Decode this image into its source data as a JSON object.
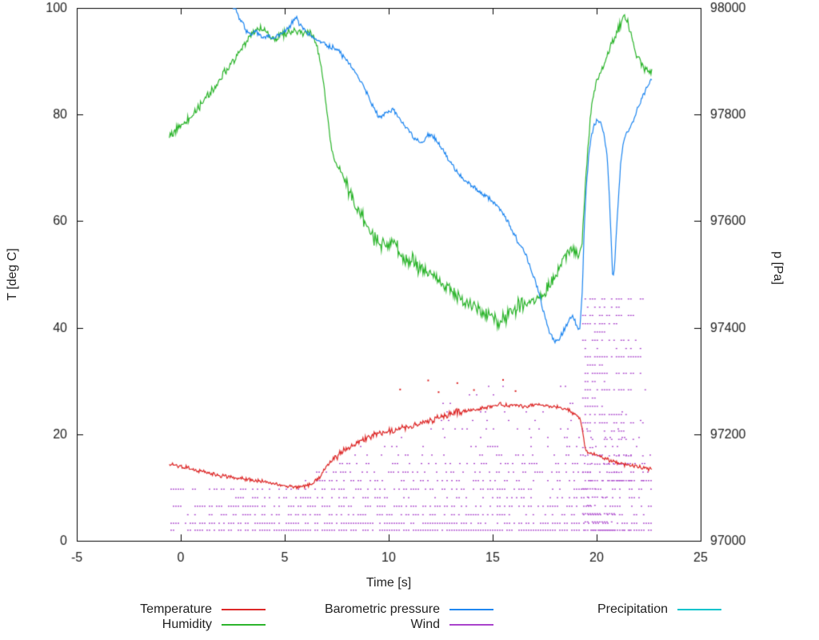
{
  "chart_data": {
    "type": "line",
    "title": "",
    "xlabel": "Time [s]",
    "ylabel_left": "T [deg C]",
    "ylabel_right": "p [Pa]",
    "x_range": [
      -5,
      25
    ],
    "y_left_range": [
      0,
      100
    ],
    "y_right_range": [
      97000,
      98000
    ],
    "x_ticks": [
      -5,
      0,
      5,
      10,
      15,
      20,
      25
    ],
    "y_left_ticks": [
      0,
      20,
      40,
      60,
      80,
      100
    ],
    "y_right_ticks": [
      97000,
      97200,
      97400,
      97600,
      97800,
      98000
    ],
    "grid": false,
    "legend_position": "bottom",
    "background": "#ffffff",
    "axis_color": "#000000",
    "series": [
      {
        "name": "Temperature",
        "color": "#dd2727",
        "axis": "left",
        "style": "noisy-line",
        "noise": 0.45,
        "noise_windows": [
          {
            "t": [
              7.5,
              13.5
            ],
            "amp": 0.35
          }
        ],
        "points": [
          [
            -0.55,
            14.3
          ],
          [
            -0.2,
            14.1
          ],
          [
            0,
            14.0
          ],
          [
            0.5,
            13.5
          ],
          [
            1,
            13.1
          ],
          [
            1.5,
            12.6
          ],
          [
            2,
            12.2
          ],
          [
            2.5,
            11.9
          ],
          [
            3,
            11.6
          ],
          [
            3.5,
            11.3
          ],
          [
            4,
            11.1
          ],
          [
            4.4,
            10.8
          ],
          [
            4.8,
            10.4
          ],
          [
            5.2,
            10.2
          ],
          [
            5.6,
            10.1
          ],
          [
            6,
            10.3
          ],
          [
            6.4,
            10.8
          ],
          [
            6.7,
            12.0
          ],
          [
            7,
            13.8
          ],
          [
            7.3,
            15.2
          ],
          [
            7.6,
            16.2
          ],
          [
            8,
            17.3
          ],
          [
            8.4,
            18.2
          ],
          [
            8.8,
            19.0
          ],
          [
            9.2,
            19.7
          ],
          [
            9.6,
            20.1
          ],
          [
            10,
            20.5
          ],
          [
            10.5,
            20.9
          ],
          [
            11,
            21.4
          ],
          [
            11.5,
            21.9
          ],
          [
            12,
            22.4
          ],
          [
            12.5,
            23.2
          ],
          [
            13,
            23.9
          ],
          [
            13.5,
            24.3
          ],
          [
            14,
            24.6
          ],
          [
            14.5,
            24.9
          ],
          [
            15,
            25.3
          ],
          [
            15.4,
            25.6
          ],
          [
            15.8,
            25.3
          ],
          [
            16.2,
            25.5
          ],
          [
            16.6,
            25.2
          ],
          [
            17,
            25.5
          ],
          [
            17.4,
            25.4
          ],
          [
            17.8,
            25.2
          ],
          [
            18.2,
            25.0
          ],
          [
            18.6,
            24.6
          ],
          [
            19,
            23.6
          ],
          [
            19.2,
            23.2
          ],
          [
            19.3,
            21.0
          ],
          [
            19.45,
            17.2
          ],
          [
            19.6,
            16.6
          ],
          [
            19.9,
            16.2
          ],
          [
            20.3,
            15.6
          ],
          [
            20.7,
            15.0
          ],
          [
            21.1,
            14.6
          ],
          [
            21.5,
            14.2
          ],
          [
            21.9,
            13.9
          ],
          [
            22.3,
            13.6
          ],
          [
            22.65,
            13.4
          ]
        ],
        "outliers": [
          [
            10.55,
            28.4
          ],
          [
            11.9,
            30.1
          ],
          [
            12.4,
            27.9
          ],
          [
            13.3,
            29.6
          ],
          [
            14.1,
            28.3
          ],
          [
            15.5,
            30.2
          ],
          [
            16.1,
            28.1
          ]
        ]
      },
      {
        "name": "Humidity",
        "color": "#2db52d",
        "axis": "left",
        "style": "noisy-line",
        "noise": 0.9,
        "noise_windows": [
          {
            "t": [
              7.8,
              16.5
            ],
            "amp": 1.0
          },
          {
            "t": [
              17.5,
              19.2
            ],
            "amp": 0.7
          }
        ],
        "points": [
          [
            -0.55,
            76.2
          ],
          [
            -0.3,
            77
          ],
          [
            0,
            78
          ],
          [
            0.3,
            79
          ],
          [
            0.6,
            80
          ],
          [
            0.9,
            81.5
          ],
          [
            1.2,
            83
          ],
          [
            1.5,
            84.5
          ],
          [
            1.8,
            86
          ],
          [
            2.1,
            88
          ],
          [
            2.4,
            89.5
          ],
          [
            2.7,
            91
          ],
          [
            3,
            93
          ],
          [
            3.3,
            94.5
          ],
          [
            3.6,
            96
          ],
          [
            3.9,
            96.3
          ],
          [
            4.2,
            95
          ],
          [
            4.5,
            94.3
          ],
          [
            4.8,
            94.8
          ],
          [
            5.1,
            95.3
          ],
          [
            5.4,
            95.8
          ],
          [
            5.7,
            95.2
          ],
          [
            6,
            95.5
          ],
          [
            6.3,
            95.2
          ],
          [
            6.5,
            93.8
          ],
          [
            6.7,
            90
          ],
          [
            6.9,
            85
          ],
          [
            7.1,
            78
          ],
          [
            7.3,
            72.5
          ],
          [
            7.5,
            70.8
          ],
          [
            7.7,
            69.5
          ],
          [
            8,
            66.5
          ],
          [
            8.4,
            63
          ],
          [
            8.8,
            60
          ],
          [
            9.2,
            57.5
          ],
          [
            9.6,
            55.8
          ],
          [
            10,
            55.3
          ],
          [
            10.2,
            56.5
          ],
          [
            10.5,
            54
          ],
          [
            10.8,
            53
          ],
          [
            11.1,
            52.5
          ],
          [
            11.5,
            51
          ],
          [
            12,
            50
          ],
          [
            12.5,
            48.5
          ],
          [
            13,
            47
          ],
          [
            13.5,
            45.4
          ],
          [
            14,
            44
          ],
          [
            14.5,
            42.8
          ],
          [
            15,
            42
          ],
          [
            15.3,
            41.3
          ],
          [
            15.7,
            42.3
          ],
          [
            16.1,
            43.8
          ],
          [
            16.5,
            44.6
          ],
          [
            17,
            45.2
          ],
          [
            17.4,
            46.2
          ],
          [
            17.8,
            48
          ],
          [
            18.1,
            50
          ],
          [
            18.4,
            52.8
          ],
          [
            18.7,
            54.5
          ],
          [
            19,
            54.2
          ],
          [
            19.15,
            53.6
          ],
          [
            19.3,
            56
          ],
          [
            19.4,
            63
          ],
          [
            19.55,
            72
          ],
          [
            19.7,
            80
          ],
          [
            19.85,
            83.5
          ],
          [
            20,
            86
          ],
          [
            20.3,
            89
          ],
          [
            20.6,
            92
          ],
          [
            20.9,
            94.8
          ],
          [
            21.1,
            96.5
          ],
          [
            21.35,
            98.6
          ],
          [
            21.5,
            97.6
          ],
          [
            21.65,
            95
          ],
          [
            21.85,
            92
          ],
          [
            22.05,
            90.3
          ],
          [
            22.3,
            88.8
          ],
          [
            22.65,
            87.8
          ]
        ]
      },
      {
        "name": "Barometric pressure",
        "color": "#1e86f0",
        "axis": "right",
        "style": "noisy-line",
        "noise": 6,
        "points": [
          [
            2.5,
            98010
          ],
          [
            2.65,
            97995
          ],
          [
            2.8,
            97982
          ],
          [
            3,
            97968
          ],
          [
            3.2,
            97955
          ],
          [
            3.4,
            97950
          ],
          [
            3.6,
            97956
          ],
          [
            3.8,
            97950
          ],
          [
            4,
            97944
          ],
          [
            4.2,
            97949
          ],
          [
            4.4,
            97943
          ],
          [
            4.6,
            97948
          ],
          [
            4.8,
            97952
          ],
          [
            5,
            97957
          ],
          [
            5.2,
            97963
          ],
          [
            5.4,
            97977
          ],
          [
            5.55,
            97983
          ],
          [
            5.7,
            97970
          ],
          [
            5.9,
            97960
          ],
          [
            6.1,
            97953
          ],
          [
            6.3,
            97947
          ],
          [
            6.5,
            97941
          ],
          [
            6.7,
            97936
          ],
          [
            7,
            97931
          ],
          [
            7.3,
            97926
          ],
          [
            7.6,
            97918
          ],
          [
            7.9,
            97906
          ],
          [
            8.2,
            97891
          ],
          [
            8.5,
            97872
          ],
          [
            8.8,
            97852
          ],
          [
            9.1,
            97827
          ],
          [
            9.4,
            97803
          ],
          [
            9.6,
            97793
          ],
          [
            9.8,
            97801
          ],
          [
            10,
            97806
          ],
          [
            10.2,
            97811
          ],
          [
            10.4,
            97801
          ],
          [
            10.6,
            97789
          ],
          [
            10.8,
            97777
          ],
          [
            11,
            97769
          ],
          [
            11.2,
            97757
          ],
          [
            11.45,
            97748
          ],
          [
            11.7,
            97752
          ],
          [
            11.95,
            97763
          ],
          [
            12.2,
            97758
          ],
          [
            12.45,
            97743
          ],
          [
            12.7,
            97728
          ],
          [
            13,
            97709
          ],
          [
            13.3,
            97692
          ],
          [
            13.6,
            97678
          ],
          [
            13.9,
            97670
          ],
          [
            14.2,
            97662
          ],
          [
            14.5,
            97650
          ],
          [
            14.8,
            97643
          ],
          [
            15.1,
            97635
          ],
          [
            15.4,
            97618
          ],
          [
            15.7,
            97603
          ],
          [
            16,
            97578
          ],
          [
            16.3,
            97557
          ],
          [
            16.6,
            97536
          ],
          [
            16.9,
            97505
          ],
          [
            17.1,
            97480
          ],
          [
            17.35,
            97445
          ],
          [
            17.6,
            97408
          ],
          [
            17.8,
            97385
          ],
          [
            18,
            97372
          ],
          [
            18.15,
            97377
          ],
          [
            18.3,
            97385
          ],
          [
            18.5,
            97400
          ],
          [
            18.7,
            97417
          ],
          [
            18.85,
            97422
          ],
          [
            19,
            97408
          ],
          [
            19.1,
            97396
          ],
          [
            19.2,
            97402
          ],
          [
            19.3,
            97460
          ],
          [
            19.4,
            97580
          ],
          [
            19.5,
            97665
          ],
          [
            19.62,
            97720
          ],
          [
            19.75,
            97762
          ],
          [
            19.9,
            97780
          ],
          [
            20.05,
            97791
          ],
          [
            20.2,
            97786
          ],
          [
            20.35,
            97766
          ],
          [
            20.5,
            97722
          ],
          [
            20.6,
            97658
          ],
          [
            20.7,
            97560
          ],
          [
            20.78,
            97490
          ],
          [
            20.85,
            97512
          ],
          [
            20.95,
            97580
          ],
          [
            21.05,
            97646
          ],
          [
            21.15,
            97706
          ],
          [
            21.3,
            97750
          ],
          [
            21.45,
            97764
          ],
          [
            21.6,
            97774
          ],
          [
            21.75,
            97788
          ],
          [
            21.9,
            97803
          ],
          [
            22.05,
            97818
          ],
          [
            22.2,
            97833
          ],
          [
            22.35,
            97846
          ],
          [
            22.5,
            97856
          ],
          [
            22.65,
            97864
          ]
        ]
      },
      {
        "name": "Wind",
        "color": "#aa44cc",
        "axis": "left",
        "style": "quantized-dots",
        "levels": [
          {
            "v": 2.0,
            "t": [
              -0.5,
              22.6
            ],
            "d": 0.8
          },
          {
            "v": 3.3,
            "t": [
              -0.5,
              22.6
            ],
            "d": 0.65
          },
          {
            "v": 4.9,
            "t": [
              0.3,
              22.6
            ],
            "d": 0.5
          },
          {
            "v": 6.5,
            "t": [
              -0.5,
              22.6
            ],
            "d": 0.55
          },
          {
            "v": 8.1,
            "t": [
              2.5,
              22.6
            ],
            "d": 0.4
          },
          {
            "v": 9.7,
            "t": [
              -0.5,
              22.6
            ],
            "d": 0.45
          },
          {
            "v": 11.3,
            "t": [
              5.5,
              22.6
            ],
            "d": 0.4
          },
          {
            "v": 12.9,
            "t": [
              6.5,
              22.6
            ],
            "d": 0.38
          },
          {
            "v": 14.5,
            "t": [
              7.5,
              22.6
            ],
            "d": 0.3
          },
          {
            "v": 16.1,
            "t": [
              8,
              22.6
            ],
            "d": 0.3
          },
          {
            "v": 17.7,
            "t": [
              8.5,
              22.6
            ],
            "d": 0.25
          },
          {
            "v": 19.4,
            "t": [
              10,
              22.6
            ],
            "d": 0.12
          },
          {
            "v": 21.0,
            "t": [
              10.5,
              22.6
            ],
            "d": 0.1
          },
          {
            "v": 22.6,
            "t": [
              11,
              22.6
            ],
            "d": 0.08
          },
          {
            "v": 24.2,
            "t": [
              11.5,
              22.6
            ],
            "d": 0.07
          },
          {
            "v": 25.8,
            "t": [
              12,
              22.6
            ],
            "d": 0.06
          },
          {
            "v": 27.4,
            "t": [
              12,
              22.6
            ],
            "d": 0.05
          },
          {
            "v": 29.0,
            "t": [
              10.5,
              22.6
            ],
            "d": 0.05
          }
        ],
        "burst": {
          "t": [
            19.3,
            22.6
          ],
          "v_min": 2,
          "v_max": 45.5,
          "v_step": 1.55,
          "d": 0.5
        }
      },
      {
        "name": "Precipitation",
        "color": "#00c3cc",
        "axis": "left",
        "style": "noisy-line",
        "noise": 0,
        "points": []
      }
    ]
  }
}
